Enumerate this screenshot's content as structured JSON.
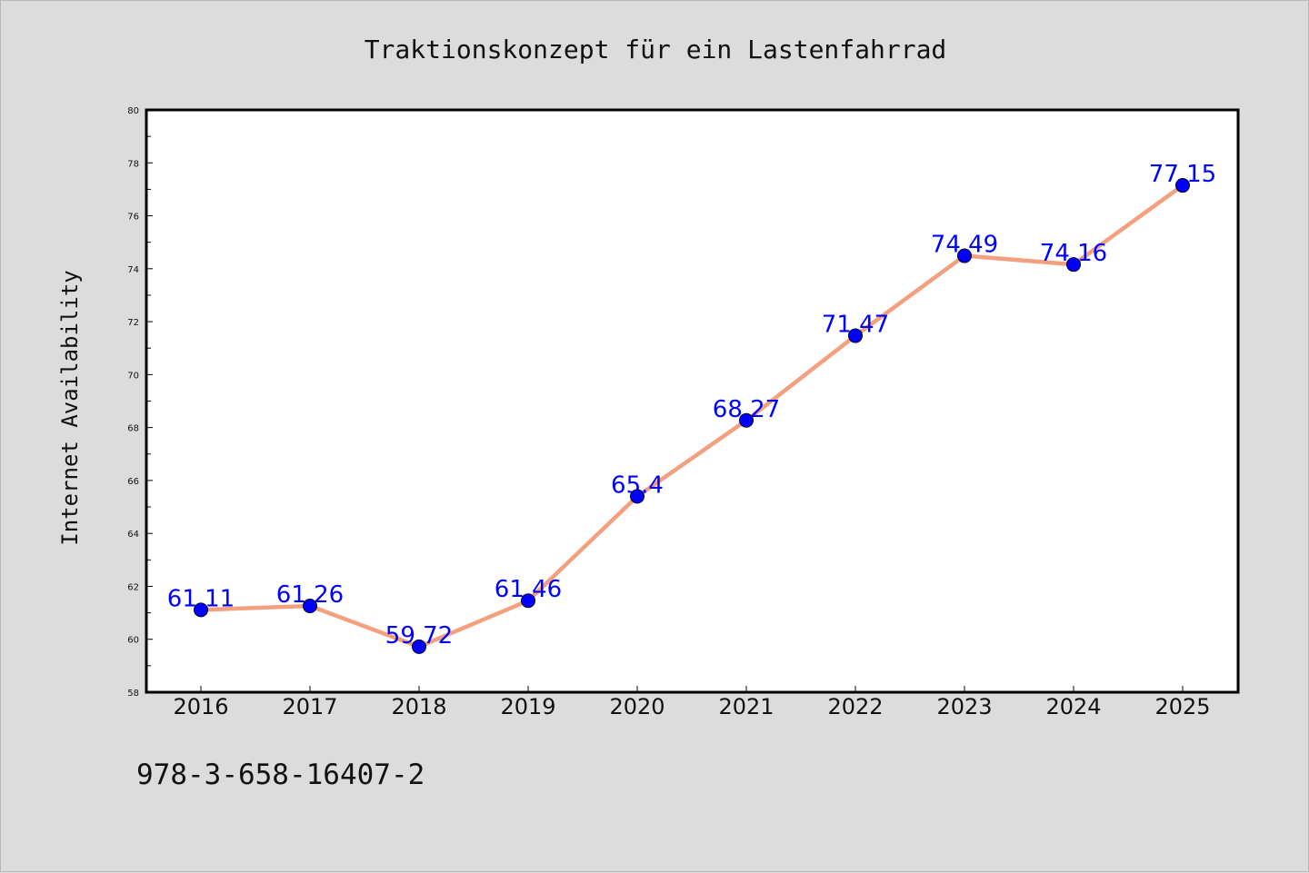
{
  "chart_data": {
    "type": "line",
    "title": "Traktionskonzept für ein Lastenfahrrad",
    "xlabel": "",
    "ylabel": "Internet Availability",
    "categories": [
      "2016",
      "2017",
      "2018",
      "2019",
      "2020",
      "2021",
      "2022",
      "2023",
      "2024",
      "2025"
    ],
    "series": [
      {
        "values": [
          61.11,
          61.26,
          59.72,
          61.46,
          65.4,
          68.27,
          71.47,
          74.49,
          74.16,
          77.15
        ],
        "labels": [
          "61.11",
          "61.26",
          "59.72",
          "61.46",
          "65.4",
          "68.27",
          "71.47",
          "74.49",
          "74.16",
          "77.15"
        ]
      }
    ],
    "ylim": [
      58,
      80
    ],
    "yticks": [
      58,
      60,
      62,
      64,
      66,
      68,
      70,
      72,
      74,
      76,
      78,
      80
    ],
    "grid": false,
    "legend": "none",
    "colors": {
      "line": "#f4a07f",
      "marker": "#0000ff",
      "data_label": "#0000ff",
      "background": "#dcdcdc",
      "plot_area": "#ffffff"
    }
  },
  "footnote": "978-3-658-16407-2"
}
